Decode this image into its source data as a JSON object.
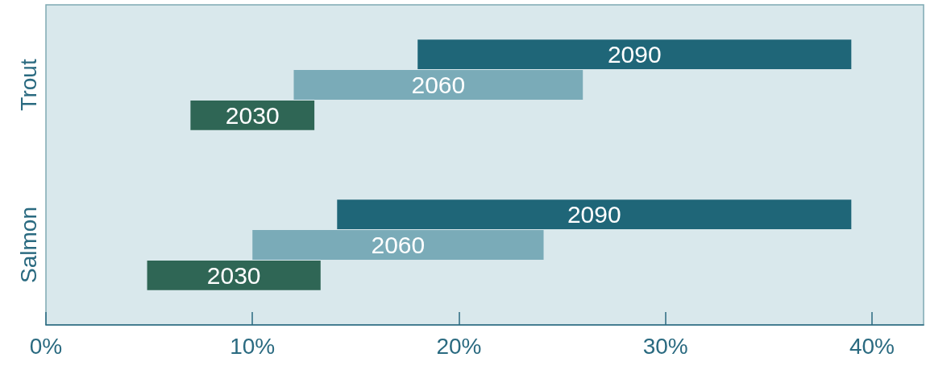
{
  "chart_data": {
    "type": "bar",
    "orientation": "horizontal",
    "categories": [
      "Trout",
      "Salmon"
    ],
    "series": [
      {
        "name": "2030",
        "color": "#2f6655",
        "base": [
          7,
          4.9
        ],
        "values": [
          6,
          8.4
        ]
      },
      {
        "name": "2060",
        "color": "#7aabb8",
        "base": [
          12,
          10
        ],
        "values": [
          14,
          14.1
        ]
      },
      {
        "name": "2090",
        "color": "#1f6678",
        "base": [
          18,
          14.1
        ],
        "values": [
          21,
          24.9
        ]
      }
    ],
    "xlim": [
      0,
      42.5
    ],
    "xticks": [
      {
        "value": 0,
        "label": "0%"
      },
      {
        "value": 10,
        "label": "10%"
      },
      {
        "value": 20,
        "label": "20%"
      },
      {
        "value": 30,
        "label": "30%"
      },
      {
        "value": 40,
        "label": "40%"
      }
    ],
    "grid": false,
    "legend": false
  }
}
